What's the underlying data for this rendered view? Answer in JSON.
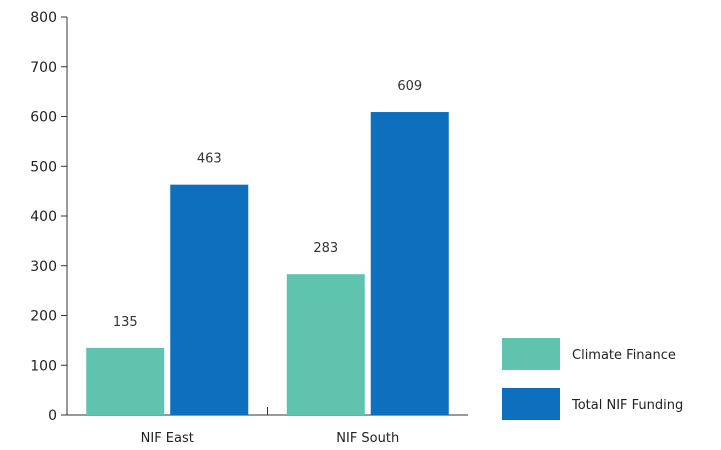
{
  "chart_data": {
    "type": "bar",
    "categories": [
      "NIF East",
      "NIF South"
    ],
    "series": [
      {
        "name": "Climate Finance",
        "values": [
          135,
          283
        ],
        "color": "#5fc3ad"
      },
      {
        "name": "Total NIF Funding",
        "values": [
          463,
          609
        ],
        "color": "#0f6fbf"
      }
    ],
    "title": "",
    "xlabel": "",
    "ylabel": "",
    "ylim": [
      0,
      800
    ],
    "yticks": [
      0,
      100,
      200,
      300,
      400,
      500,
      600,
      700,
      800
    ],
    "grid": false,
    "legend": "right"
  }
}
